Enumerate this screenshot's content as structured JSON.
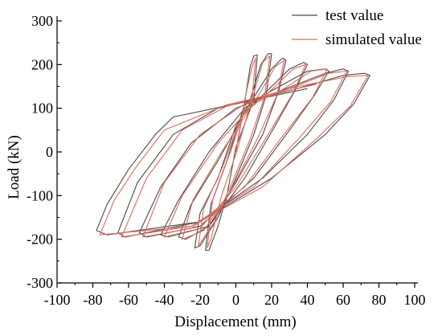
{
  "chart_data": {
    "type": "line",
    "title": "",
    "xlabel": "Displacement (mm)",
    "ylabel": "Load (kN)",
    "xlim": [
      -100,
      100
    ],
    "ylim": [
      -300,
      300
    ],
    "xticks": [
      -100,
      -80,
      -60,
      -40,
      -20,
      0,
      20,
      40,
      60,
      80,
      100
    ],
    "yticks": [
      -300,
      -200,
      -100,
      0,
      100,
      200,
      300
    ],
    "grid": false,
    "legend_position": "top-right",
    "series": [
      {
        "name": "test value",
        "color": "#4a4a4a",
        "loops": [
          [
            [
              0,
              0
            ],
            [
              5,
              115
            ],
            [
              8,
              195
            ],
            [
              10,
              220
            ],
            [
              12,
              222
            ],
            [
              10,
              120
            ],
            [
              0,
              10
            ],
            [
              -5,
              -100
            ],
            [
              -10,
              -170
            ],
            [
              -15,
              -225
            ],
            [
              -17,
              -225
            ],
            [
              -14,
              -120
            ],
            [
              -5,
              -20
            ],
            [
              5,
              110
            ],
            [
              8,
              120
            ]
          ],
          [
            [
              8,
              120
            ],
            [
              14,
              200
            ],
            [
              18,
              225
            ],
            [
              20,
              225
            ],
            [
              17,
              130
            ],
            [
              10,
              40
            ],
            [
              0,
              -60
            ],
            [
              -10,
              -150
            ],
            [
              -20,
              -215
            ],
            [
              -23,
              -220
            ],
            [
              -20,
              -140
            ],
            [
              -10,
              -60
            ],
            [
              0,
              60
            ],
            [
              10,
              125
            ]
          ],
          [
            [
              10,
              125
            ],
            [
              20,
              190
            ],
            [
              26,
              215
            ],
            [
              28,
              210
            ],
            [
              24,
              140
            ],
            [
              15,
              40
            ],
            [
              0,
              -70
            ],
            [
              -15,
              -170
            ],
            [
              -28,
              -200
            ],
            [
              -32,
              -195
            ],
            [
              -25,
              -120
            ],
            [
              -10,
              -20
            ],
            [
              5,
              90
            ],
            [
              15,
              130
            ]
          ],
          [
            [
              15,
              130
            ],
            [
              30,
              190
            ],
            [
              38,
              205
            ],
            [
              40,
              200
            ],
            [
              33,
              140
            ],
            [
              22,
              60
            ],
            [
              5,
              -60
            ],
            [
              -15,
              -170
            ],
            [
              -38,
              -195
            ],
            [
              -42,
              -190
            ],
            [
              -32,
              -110
            ],
            [
              -15,
              0
            ],
            [
              5,
              100
            ],
            [
              20,
              140
            ]
          ],
          [
            [
              20,
              140
            ],
            [
              40,
              185
            ],
            [
              50,
              190
            ],
            [
              52,
              185
            ],
            [
              44,
              130
            ],
            [
              30,
              50
            ],
            [
              10,
              -60
            ],
            [
              -20,
              -170
            ],
            [
              -50,
              -195
            ],
            [
              -54,
              -185
            ],
            [
              -42,
              -80
            ],
            [
              -25,
              20
            ],
            [
              0,
              100
            ],
            [
              25,
              140
            ]
          ],
          [
            [
              25,
              140
            ],
            [
              50,
              180
            ],
            [
              60,
              190
            ],
            [
              63,
              185
            ],
            [
              55,
              120
            ],
            [
              40,
              40
            ],
            [
              15,
              -60
            ],
            [
              -20,
              -160
            ],
            [
              -62,
              -195
            ],
            [
              -66,
              -185
            ],
            [
              -55,
              -70
            ],
            [
              -35,
              40
            ],
            [
              -10,
              100
            ],
            [
              30,
              140
            ]
          ],
          [
            [
              30,
              140
            ],
            [
              60,
              175
            ],
            [
              72,
              180
            ],
            [
              75,
              175
            ],
            [
              66,
              110
            ],
            [
              50,
              40
            ],
            [
              20,
              -60
            ],
            [
              -20,
              -160
            ],
            [
              -72,
              -190
            ],
            [
              -78,
              -180
            ],
            [
              -72,
              -120
            ],
            [
              -60,
              -40
            ],
            [
              -45,
              40
            ],
            [
              -35,
              80
            ],
            [
              0,
              110
            ],
            [
              40,
              145
            ]
          ]
        ]
      },
      {
        "name": "simulated value",
        "color": "#e06a5c",
        "loops": [
          [
            [
              0,
              0
            ],
            [
              5,
              120
            ],
            [
              9,
              195
            ],
            [
              11,
              215
            ],
            [
              9,
              120
            ],
            [
              0,
              -5
            ],
            [
              -8,
              -100
            ],
            [
              -14,
              -200
            ],
            [
              -16,
              -220
            ],
            [
              -13,
              -110
            ],
            [
              -3,
              0
            ],
            [
              6,
              110
            ],
            [
              9,
              120
            ]
          ],
          [
            [
              9,
              120
            ],
            [
              15,
              205
            ],
            [
              19,
              220
            ],
            [
              16,
              125
            ],
            [
              8,
              30
            ],
            [
              -2,
              -70
            ],
            [
              -12,
              -160
            ],
            [
              -21,
              -215
            ],
            [
              -18,
              -130
            ],
            [
              -8,
              -40
            ],
            [
              3,
              80
            ],
            [
              12,
              125
            ]
          ],
          [
            [
              12,
              125
            ],
            [
              22,
              195
            ],
            [
              27,
              210
            ],
            [
              23,
              130
            ],
            [
              12,
              30
            ],
            [
              -3,
              -90
            ],
            [
              -18,
              -180
            ],
            [
              -30,
              -200
            ],
            [
              -24,
              -110
            ],
            [
              -8,
              0
            ],
            [
              8,
              100
            ],
            [
              18,
              135
            ]
          ],
          [
            [
              18,
              135
            ],
            [
              32,
              190
            ],
            [
              39,
              200
            ],
            [
              32,
              135
            ],
            [
              18,
              40
            ],
            [
              0,
              -80
            ],
            [
              -20,
              -175
            ],
            [
              -40,
              -195
            ],
            [
              -30,
              -100
            ],
            [
              -10,
              20
            ],
            [
              10,
              110
            ],
            [
              25,
              140
            ]
          ],
          [
            [
              25,
              140
            ],
            [
              42,
              185
            ],
            [
              51,
              190
            ],
            [
              43,
              125
            ],
            [
              25,
              30
            ],
            [
              5,
              -80
            ],
            [
              -25,
              -175
            ],
            [
              -52,
              -195
            ],
            [
              -40,
              -70
            ],
            [
              -20,
              40
            ],
            [
              5,
              110
            ],
            [
              30,
              145
            ]
          ],
          [
            [
              30,
              145
            ],
            [
              52,
              180
            ],
            [
              62,
              185
            ],
            [
              53,
              115
            ],
            [
              35,
              30
            ],
            [
              10,
              -80
            ],
            [
              -25,
              -170
            ],
            [
              -64,
              -195
            ],
            [
              -50,
              -60
            ],
            [
              -30,
              50
            ],
            [
              -5,
              105
            ],
            [
              35,
              150
            ]
          ],
          [
            [
              35,
              150
            ],
            [
              62,
              172
            ],
            [
              74,
              175
            ],
            [
              64,
              105
            ],
            [
              45,
              30
            ],
            [
              15,
              -80
            ],
            [
              -25,
              -170
            ],
            [
              -76,
              -190
            ],
            [
              -68,
              -110
            ],
            [
              -55,
              -30
            ],
            [
              -40,
              50
            ],
            [
              -5,
              108
            ],
            [
              45,
              155
            ]
          ]
        ]
      }
    ]
  }
}
